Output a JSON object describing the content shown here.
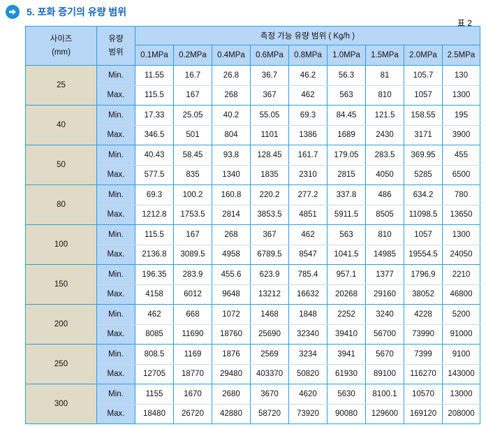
{
  "heading": "5. 포화 증기의 유량 범위",
  "table_no": "표 2",
  "header": {
    "size": [
      "사이즈",
      "(mm)"
    ],
    "range": [
      "유량",
      "범위"
    ],
    "measure": "측정 가능 유량 범위 ( Kg/h )",
    "pressures": [
      "0.1MPa",
      "0.2MPa",
      "0.4MPa",
      "0.6MPa",
      "0.8MPa",
      "1.0MPa",
      "1.5MPa",
      "2.0MPa",
      "2.5MPa"
    ]
  },
  "rows": [
    {
      "size": "25",
      "min": [
        "11.55",
        "16.7",
        "26.8",
        "36.7",
        "46.2",
        "56.3",
        "81",
        "105.7",
        "130"
      ],
      "max": [
        "115.5",
        "167",
        "268",
        "367",
        "462",
        "563",
        "810",
        "1057",
        "1300"
      ]
    },
    {
      "size": "40",
      "min": [
        "17.33",
        "25.05",
        "40.2",
        "55.05",
        "69.3",
        "84.45",
        "121.5",
        "158.55",
        "195"
      ],
      "max": [
        "346.5",
        "501",
        "804",
        "1101",
        "1386",
        "1689",
        "2430",
        "3171",
        "3900"
      ]
    },
    {
      "size": "50",
      "min": [
        "40.43",
        "58.45",
        "93.8",
        "128.45",
        "161.7",
        "179.05",
        "283.5",
        "369.95",
        "455"
      ],
      "max": [
        "577.5",
        "835",
        "1340",
        "1835",
        "2310",
        "2815",
        "4050",
        "5285",
        "6500"
      ]
    },
    {
      "size": "80",
      "min": [
        "69.3",
        "100.2",
        "160.8",
        "220.2",
        "277.2",
        "337.8",
        "486",
        "634.2",
        "780"
      ],
      "max": [
        "1212.8",
        "1753.5",
        "2814",
        "3853.5",
        "4851",
        "5911.5",
        "8505",
        "11098.5",
        "13650"
      ]
    },
    {
      "size": "100",
      "min": [
        "115.5",
        "167",
        "268",
        "367",
        "462",
        "563",
        "810",
        "1057",
        "1300"
      ],
      "max": [
        "2136.8",
        "3089.5",
        "4958",
        "6789.5",
        "8547",
        "1041.5",
        "14985",
        "19554.5",
        "24050"
      ]
    },
    {
      "size": "150",
      "min": [
        "196.35",
        "283.9",
        "455.6",
        "623.9",
        "785.4",
        "957.1",
        "1377",
        "1796.9",
        "2210"
      ],
      "max": [
        "4158",
        "6012",
        "9648",
        "13212",
        "16632",
        "20268",
        "29160",
        "38052",
        "46800"
      ]
    },
    {
      "size": "200",
      "min": [
        "462",
        "668",
        "1072",
        "1468",
        "1848",
        "2252",
        "3240",
        "4228",
        "5200"
      ],
      "max": [
        "8085",
        "11690",
        "18760",
        "25690",
        "32340",
        "39410",
        "56700",
        "73990",
        "91000"
      ]
    },
    {
      "size": "250",
      "min": [
        "808.5",
        "1169",
        "1876",
        "2569",
        "3234",
        "3941",
        "5670",
        "7399",
        "9100"
      ],
      "max": [
        "12705",
        "18770",
        "29480",
        "403370",
        "50820",
        "61930",
        "89100",
        "116270",
        "143000"
      ]
    },
    {
      "size": "300",
      "min": [
        "1155",
        "1670",
        "2680",
        "3670",
        "4620",
        "5630",
        "8100.1",
        "10570",
        "13000"
      ],
      "max": [
        "18480",
        "26720",
        "42880",
        "58720",
        "73920",
        "90080",
        "129600",
        "169120",
        "208000"
      ]
    }
  ],
  "labels": {
    "min": "Min.",
    "max": "Max."
  }
}
